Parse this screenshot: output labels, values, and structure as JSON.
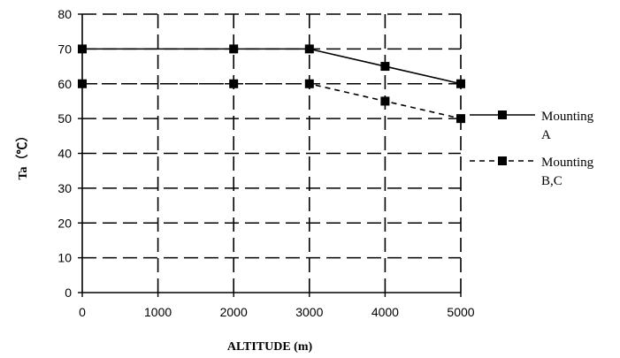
{
  "chart_data": {
    "type": "line",
    "xlabel": "ALTITUDE (m)",
    "ylabel": "Ta（℃）",
    "xlim": [
      0,
      5000
    ],
    "ylim": [
      0,
      80
    ],
    "xticks": [
      0,
      1000,
      2000,
      3000,
      4000,
      5000
    ],
    "yticks": [
      0,
      10,
      20,
      30,
      40,
      50,
      60,
      70,
      80
    ],
    "grid": true,
    "grid_style": "dashed",
    "legend_position": "right",
    "series": [
      {
        "name_lines": [
          "Mounting",
          "A"
        ],
        "style": "solid",
        "marker": "square",
        "x": [
          0,
          2000,
          3000,
          4000,
          5000
        ],
        "y": [
          70,
          70,
          70,
          65,
          60
        ]
      },
      {
        "name_lines": [
          "Mounting",
          "B,C"
        ],
        "style": "dashed",
        "marker": "square",
        "x": [
          0,
          2000,
          3000,
          4000,
          5000
        ],
        "y": [
          60,
          60,
          60,
          55,
          50
        ]
      }
    ]
  }
}
